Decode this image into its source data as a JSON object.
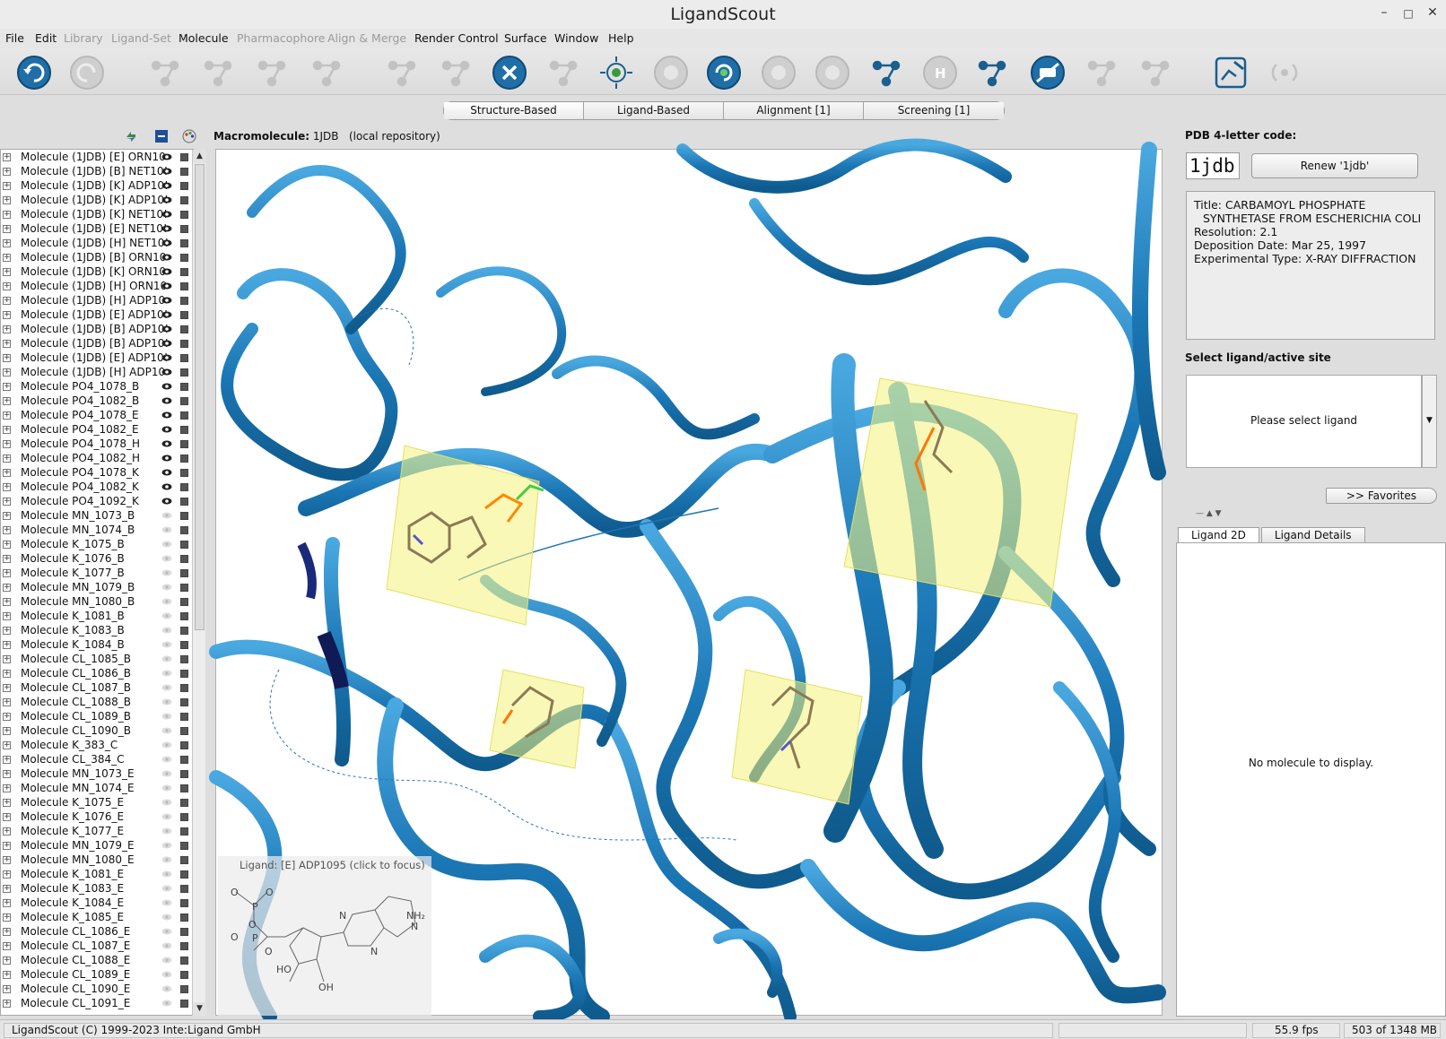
{
  "window": {
    "title": "LigandScout"
  },
  "menu": [
    {
      "label": "File",
      "enabled": true
    },
    {
      "label": "Edit",
      "enabled": true
    },
    {
      "label": "Library",
      "enabled": false
    },
    {
      "label": "Ligand-Set",
      "enabled": false
    },
    {
      "label": "Molecule",
      "enabled": true
    },
    {
      "label": "Pharmacophore",
      "enabled": false
    },
    {
      "label": "Align & Merge",
      "enabled": false
    },
    {
      "label": "Render Control",
      "enabled": true
    },
    {
      "label": "Surface",
      "enabled": true
    },
    {
      "label": "Window",
      "enabled": true
    },
    {
      "label": "Help",
      "enabled": true
    }
  ],
  "toolbar": [
    {
      "icon": "undo-icon",
      "enabled": true
    },
    {
      "icon": "redo-icon",
      "enabled": false
    },
    {
      "icon": "molecule-menu-icon",
      "enabled": false
    },
    {
      "icon": "unknown-atom-icon",
      "enabled": false
    },
    {
      "icon": "break-bond-icon",
      "enabled": false
    },
    {
      "icon": "query-structure-icon",
      "enabled": false
    },
    {
      "icon": "add-atom-icon",
      "enabled": false
    },
    {
      "icon": "remove-atom-icon",
      "enabled": false
    },
    {
      "icon": "clear-selection-icon",
      "enabled": true
    },
    {
      "icon": "create-pharmacophore-icon",
      "enabled": false
    },
    {
      "icon": "center-view-icon",
      "enabled": true
    },
    {
      "icon": "color-scheme-icon",
      "enabled": false
    },
    {
      "icon": "rotate-view-icon",
      "enabled": true
    },
    {
      "icon": "feature-icon",
      "enabled": false
    },
    {
      "icon": "feature-alt-icon",
      "enabled": false
    },
    {
      "icon": "branch-icon",
      "enabled": true
    },
    {
      "icon": "hydrogen-icon",
      "enabled": false
    },
    {
      "icon": "render-style-icon",
      "enabled": true
    },
    {
      "icon": "hide-labels-icon",
      "enabled": true
    },
    {
      "icon": "alpha-angle-icon",
      "enabled": false
    },
    {
      "icon": "distance-icon",
      "enabled": false
    },
    {
      "icon": "edit-molecule-icon",
      "enabled": true
    },
    {
      "icon": "signal-icon",
      "enabled": false
    }
  ],
  "mode_tabs": [
    "Structure-Based",
    "Ligand-Based",
    "Alignment [1]",
    "Screening [1]"
  ],
  "tree": [
    "Molecule (1JDB) [E] ORN10",
    "Molecule (1JDB) [B] NET10!",
    "Molecule (1JDB) [K] ADP10!",
    "Molecule (1JDB) [K] ADP10!",
    "Molecule (1JDB) [K] NET10!",
    "Molecule (1JDB) [E] NET10!",
    "Molecule (1JDB) [H] NET10!",
    "Molecule (1JDB) [B] ORN10",
    "Molecule (1JDB) [K] ORN10",
    "Molecule (1JDB) [H] ORN10",
    "Molecule (1JDB) [H] ADP10",
    "Molecule (1JDB) [E] ADP10!",
    "Molecule (1JDB) [B] ADP10!",
    "Molecule (1JDB) [B] ADP10!",
    "Molecule (1JDB) [E] ADP10!",
    "Molecule (1JDB) [H] ADP10",
    "Molecule PO4_1078_B",
    "Molecule PO4_1082_B",
    "Molecule PO4_1078_E",
    "Molecule PO4_1082_E",
    "Molecule PO4_1078_H",
    "Molecule PO4_1082_H",
    "Molecule PO4_1078_K",
    "Molecule PO4_1082_K",
    "Molecule PO4_1092_K",
    "Molecule MN_1073_B",
    "Molecule MN_1074_B",
    "Molecule K_1075_B",
    "Molecule K_1076_B",
    "Molecule K_1077_B",
    "Molecule MN_1079_B",
    "Molecule MN_1080_B",
    "Molecule K_1081_B",
    "Molecule K_1083_B",
    "Molecule K_1084_B",
    "Molecule CL_1085_B",
    "Molecule CL_1086_B",
    "Molecule CL_1087_B",
    "Molecule CL_1088_B",
    "Molecule CL_1089_B",
    "Molecule CL_1090_B",
    "Molecule K_383_C",
    "Molecule CL_384_C",
    "Molecule MN_1073_E",
    "Molecule MN_1074_E",
    "Molecule K_1075_E",
    "Molecule K_1076_E",
    "Molecule K_1077_E",
    "Molecule MN_1079_E",
    "Molecule MN_1080_E",
    "Molecule K_1081_E",
    "Molecule K_1083_E",
    "Molecule K_1084_E",
    "Molecule K_1085_E",
    "Molecule CL_1086_E",
    "Molecule CL_1087_E",
    "Molecule CL_1088_E",
    "Molecule CL_1089_E",
    "Molecule CL_1090_E",
    "Molecule CL_1091_E"
  ],
  "viewer": {
    "header_label": "Macromolecule:",
    "header_value": "1JDB",
    "header_note": "(local repository)",
    "ligand_caption": "Ligand:  [E] ADP1095 (click to focus)"
  },
  "right_panel": {
    "pdb_label": "PDB 4-letter code:",
    "pdb_value": "1jdb",
    "renew_button": "Renew '1jdb'",
    "info": {
      "title_line1": "Title: CARBAMOYL PHOSPHATE",
      "title_line2": "SYNTHETASE FROM ESCHERICHIA COLI",
      "resolution": "Resolution: 2.1",
      "deposition": "Deposition Date: Mar 25, 1997",
      "exp_type": "Experimental Type: X-RAY DIFFRACTION"
    },
    "select_label": "Select ligand/active site",
    "select_placeholder": "Please select ligand",
    "favorites_button": ">> Favorites",
    "tabs": [
      "Ligand 2D",
      "Ligand Details"
    ],
    "empty_msg": "No molecule to display."
  },
  "status": {
    "copyright": "LigandScout (C) 1999-2023 Inte:Ligand GmbH",
    "fps": "55.9 fps",
    "memory": "503 of 1348 MB"
  },
  "colors": {
    "ribbon": "#1b77b5",
    "ribbon_light": "#3a9ad6",
    "ribbon_dark": "#0f5b8e",
    "ligand_box": "#f5f37a",
    "accent": "#1a5f8e"
  }
}
